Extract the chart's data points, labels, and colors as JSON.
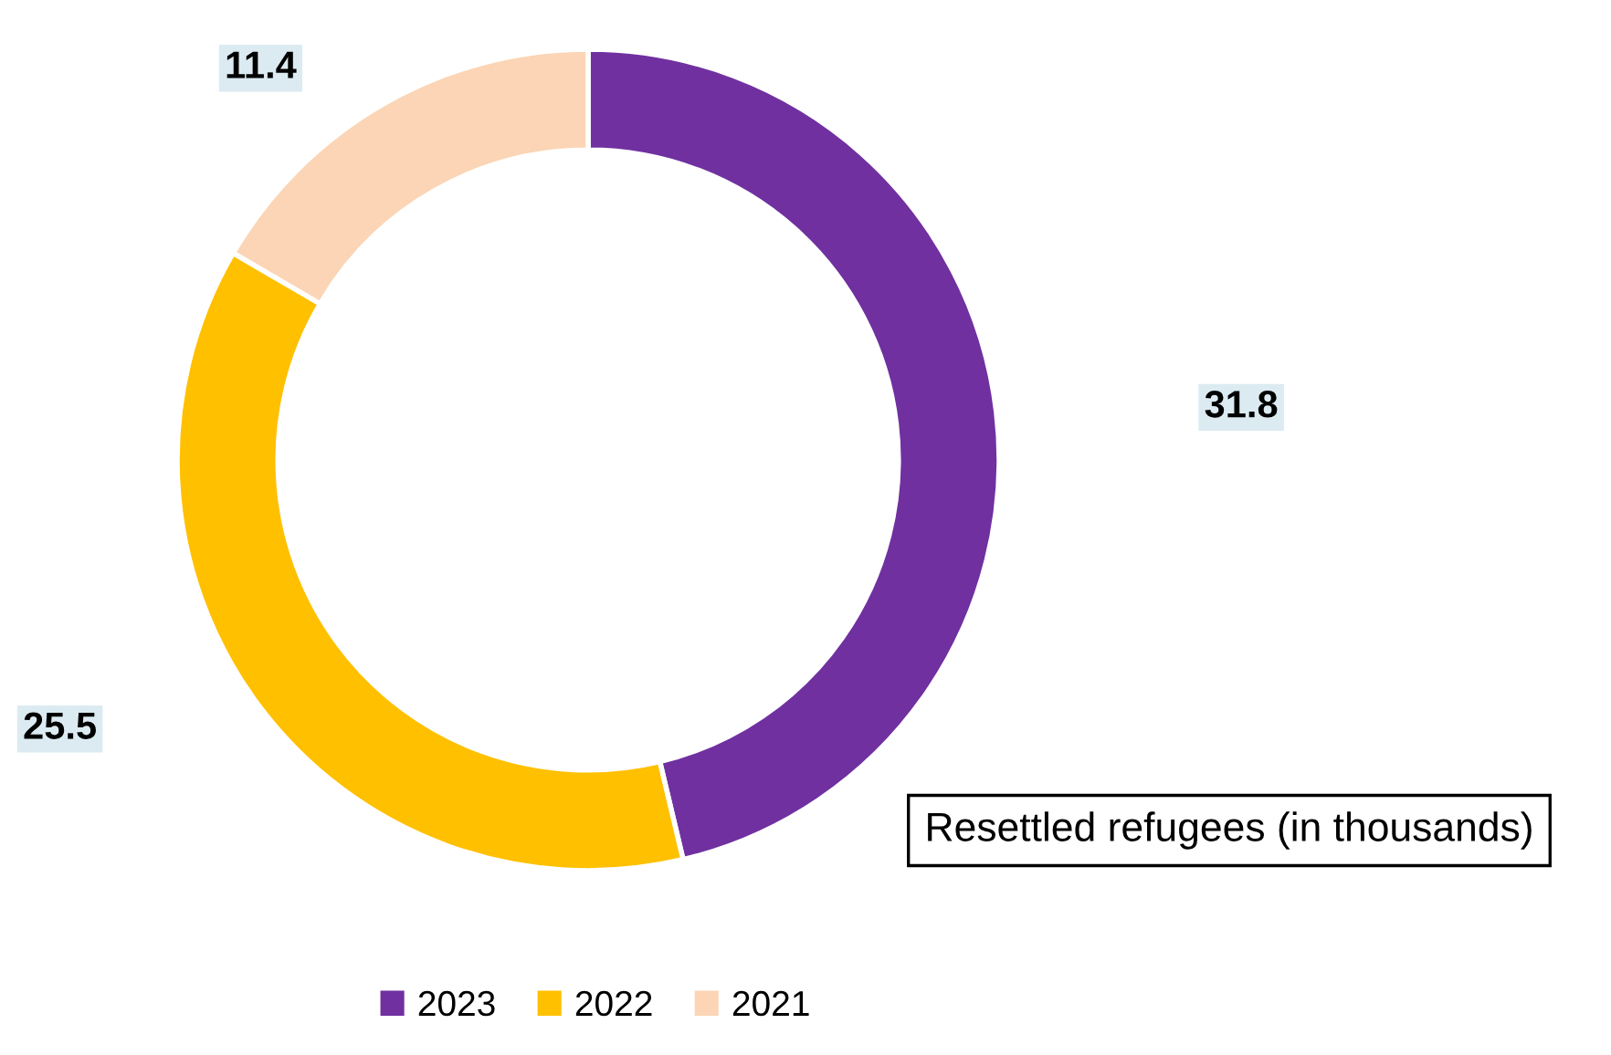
{
  "chart_data": {
    "type": "donut",
    "categories": [
      "2023",
      "2022",
      "2021"
    ],
    "values": [
      31.8,
      25.5,
      11.4
    ],
    "colors": [
      "#7030a0",
      "#ffc000",
      "#fbd5b5"
    ],
    "data_labels": true,
    "legend": "bottom",
    "annotations": [
      "Resettled refugees (in thousands)"
    ]
  }
}
